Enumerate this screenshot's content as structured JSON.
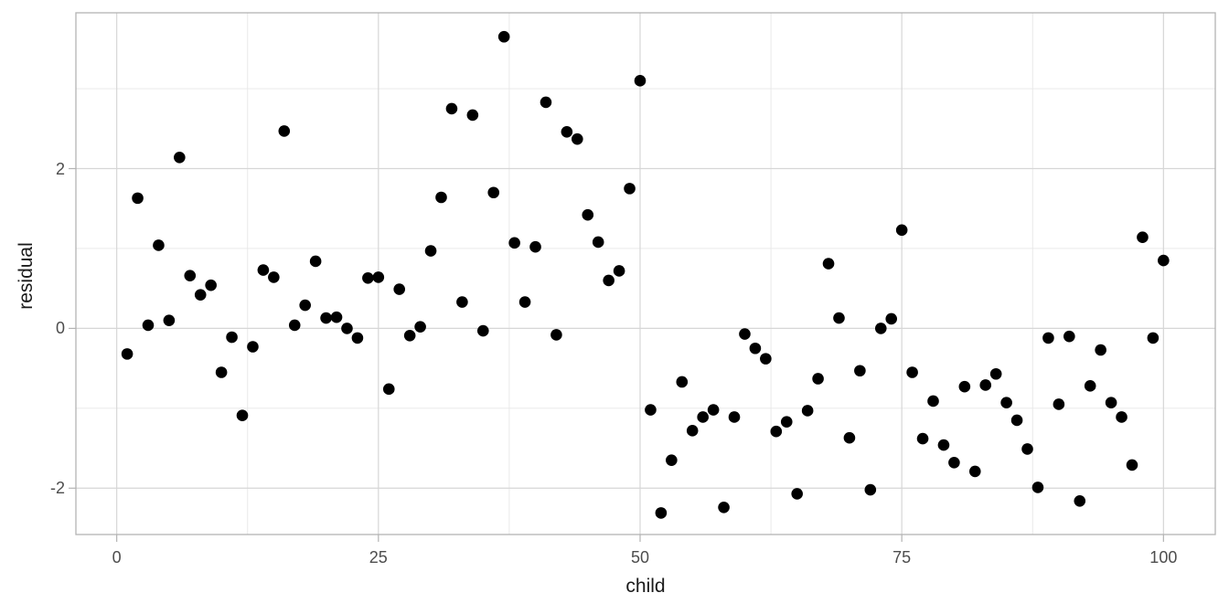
{
  "figure": {
    "background": "#ffffff"
  },
  "axes": {
    "x_title": "child",
    "y_title": "residual"
  },
  "colors": {
    "point": "#000000",
    "grid_major": "#d6d6d6",
    "grid_minor": "#e7e7e7",
    "panel_border": "#b3b3b3",
    "tick_mark": "#b3b3b3",
    "tick_label": "#4d4d4d",
    "axis_title": "#1a1a1a",
    "panel_bg": "#ffffff"
  },
  "chart_data": {
    "type": "scatter",
    "title": "",
    "xlabel": "child",
    "ylabel": "residual",
    "x_ticks": [
      0,
      25,
      50,
      75,
      100
    ],
    "y_ticks": [
      -2,
      0,
      2
    ],
    "x_minor_ticks": [
      12.5,
      37.5,
      62.5,
      87.5
    ],
    "y_minor_ticks": [
      -1,
      1,
      3
    ],
    "xlim": [
      -3.9,
      104.95
    ],
    "ylim": [
      -2.58,
      3.95
    ],
    "grid": true,
    "legend": "none",
    "points": [
      [
        1,
        -0.32
      ],
      [
        2,
        1.63
      ],
      [
        3,
        0.04
      ],
      [
        4,
        1.04
      ],
      [
        5,
        0.1
      ],
      [
        6,
        2.14
      ],
      [
        7,
        0.66
      ],
      [
        8,
        0.42
      ],
      [
        9,
        0.54
      ],
      [
        10,
        -0.55
      ],
      [
        11,
        -0.11
      ],
      [
        12,
        -1.09
      ],
      [
        13,
        -0.23
      ],
      [
        14,
        0.73
      ],
      [
        15,
        0.64
      ],
      [
        16,
        2.47
      ],
      [
        17,
        0.04
      ],
      [
        18,
        0.29
      ],
      [
        19,
        0.84
      ],
      [
        20,
        0.13
      ],
      [
        21,
        0.14
      ],
      [
        22,
        0.0
      ],
      [
        23,
        -0.12
      ],
      [
        24,
        0.63
      ],
      [
        25,
        0.64
      ],
      [
        26,
        -0.76
      ],
      [
        27,
        0.49
      ],
      [
        28,
        -0.09
      ],
      [
        29,
        0.02
      ],
      [
        30,
        0.97
      ],
      [
        31,
        1.64
      ],
      [
        32,
        2.75
      ],
      [
        33,
        0.33
      ],
      [
        34,
        2.67
      ],
      [
        35,
        -0.03
      ],
      [
        36,
        1.7
      ],
      [
        37,
        3.65
      ],
      [
        38,
        1.07
      ],
      [
        39,
        0.33
      ],
      [
        40,
        1.02
      ],
      [
        41,
        2.83
      ],
      [
        42,
        -0.08
      ],
      [
        43,
        2.46
      ],
      [
        44,
        2.37
      ],
      [
        45,
        1.42
      ],
      [
        46,
        1.08
      ],
      [
        47,
        0.6
      ],
      [
        48,
        0.72
      ],
      [
        49,
        1.75
      ],
      [
        50,
        3.1
      ],
      [
        51,
        -1.02
      ],
      [
        52,
        -2.31
      ],
      [
        53,
        -1.65
      ],
      [
        54,
        -0.67
      ],
      [
        55,
        -1.28
      ],
      [
        56,
        -1.11
      ],
      [
        57,
        -1.02
      ],
      [
        58,
        -2.24
      ],
      [
        59,
        -1.11
      ],
      [
        60,
        -0.07
      ],
      [
        61,
        -0.25
      ],
      [
        62,
        -0.38
      ],
      [
        63,
        -1.29
      ],
      [
        64,
        -1.17
      ],
      [
        65,
        -2.07
      ],
      [
        66,
        -1.03
      ],
      [
        67,
        -0.63
      ],
      [
        68,
        0.81
      ],
      [
        69,
        0.13
      ],
      [
        70,
        -1.37
      ],
      [
        71,
        -0.53
      ],
      [
        72,
        -2.02
      ],
      [
        73,
        0.0
      ],
      [
        74,
        0.12
      ],
      [
        75,
        1.23
      ],
      [
        76,
        -0.55
      ],
      [
        77,
        -1.38
      ],
      [
        78,
        -0.91
      ],
      [
        79,
        -1.46
      ],
      [
        80,
        -1.68
      ],
      [
        81,
        -0.73
      ],
      [
        82,
        -1.79
      ],
      [
        83,
        -0.71
      ],
      [
        84,
        -0.57
      ],
      [
        85,
        -0.93
      ],
      [
        86,
        -1.15
      ],
      [
        87,
        -1.51
      ],
      [
        88,
        -1.99
      ],
      [
        89,
        -0.12
      ],
      [
        90,
        -0.95
      ],
      [
        91,
        -0.1
      ],
      [
        92,
        -2.16
      ],
      [
        93,
        -0.72
      ],
      [
        94,
        -0.27
      ],
      [
        95,
        -0.93
      ],
      [
        96,
        -1.11
      ],
      [
        97,
        -1.71
      ],
      [
        98,
        1.14
      ],
      [
        99,
        -0.12
      ],
      [
        100,
        0.85
      ]
    ]
  }
}
